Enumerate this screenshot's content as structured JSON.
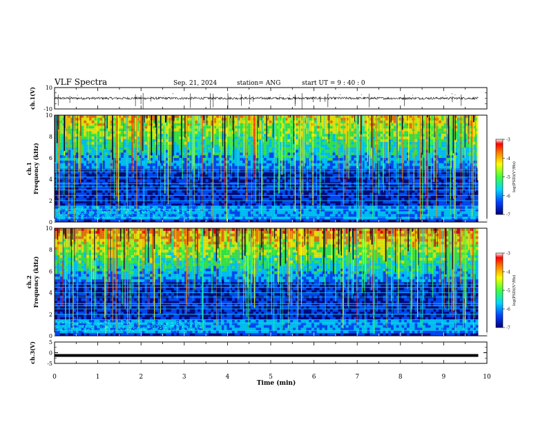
{
  "header": {
    "title": "VLF Spectra",
    "date": "Sep. 21, 2024",
    "station": "station= ANG",
    "start": "start  UT =   9 : 40 : 0"
  },
  "chart_data": [
    {
      "type": "line",
      "name": "ch1-waveform",
      "ylabel": "ch.1(V)",
      "ylim": [
        -10,
        10
      ],
      "yticks": [
        10,
        -10
      ],
      "xlim": [
        0,
        10
      ],
      "x": [
        0,
        9.8
      ],
      "y": [
        0,
        0
      ]
    },
    {
      "type": "heatmap",
      "name": "ch1-spectrogram",
      "ylabel": "ch.1\nFrequency (kHz)",
      "ylim": [
        0,
        10
      ],
      "yticks": [
        0,
        2,
        4,
        6,
        8,
        10
      ],
      "xlim": [
        0,
        10
      ],
      "colorbar": {
        "label": "log(PSD)(V²/Hz)",
        "range": [
          -7,
          -3
        ],
        "ticks": [
          -3,
          -4,
          -5,
          -6,
          -7
        ]
      },
      "bands_khz": [
        0.4,
        1.2,
        1.5,
        2.0,
        2.5,
        3.0,
        3.3,
        3.6,
        4.2,
        4.7,
        4.9
      ]
    },
    {
      "type": "heatmap",
      "name": "ch2-spectrogram",
      "ylabel": "ch.2\nFrequency (kHz)",
      "ylim": [
        0,
        10
      ],
      "yticks": [
        0,
        2,
        4,
        6,
        8,
        10
      ],
      "xlim": [
        0,
        10
      ],
      "colorbar": {
        "label": "log(PSD)(V²/Hz)",
        "range": [
          -7,
          -3
        ],
        "ticks": [
          -3,
          -4,
          -5,
          -6,
          -7
        ]
      },
      "bands_khz": [
        0.5,
        1.2,
        1.5,
        2.0,
        2.5,
        2.8,
        3.0,
        3.6,
        4.0,
        4.5,
        4.8
      ]
    },
    {
      "type": "line",
      "name": "ch3-waveform",
      "ylabel": "ch.3(V)",
      "ylim": [
        -5,
        5
      ],
      "yticks": [
        5,
        0,
        -5
      ],
      "xlim": [
        0,
        10
      ],
      "x": [
        0,
        9.8
      ],
      "y": [
        -1.3,
        -1.3
      ]
    }
  ],
  "xaxis": {
    "label": "Time  (min)",
    "ticks": [
      "0",
      "1",
      "2",
      "3",
      "4",
      "5",
      "6",
      "7",
      "8",
      "9",
      "10"
    ]
  },
  "colors": {
    "waveform": "#000000",
    "spectrogram_background": "#000a78",
    "colormap": [
      "#00007a",
      "#0050ff",
      "#00d8ff",
      "#40ff40",
      "#ffff00",
      "#ff8000",
      "#ff0000",
      "#ffffff"
    ]
  }
}
